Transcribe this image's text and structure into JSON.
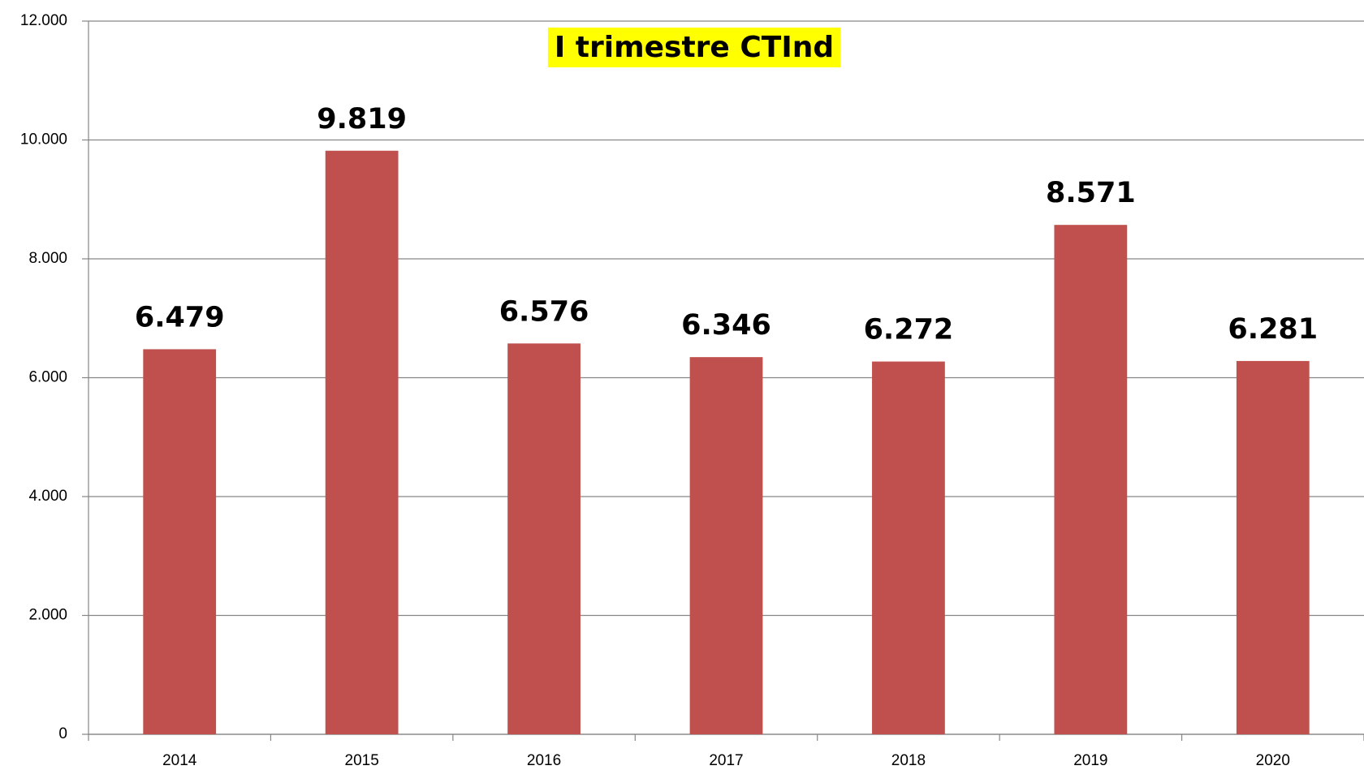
{
  "chart_data": {
    "type": "bar",
    "title": "I trimestre CTInd",
    "categories": [
      "2014",
      "2015",
      "2016",
      "2017",
      "2018",
      "2019",
      "2020"
    ],
    "values": [
      6479,
      9819,
      6576,
      6346,
      6272,
      8571,
      6281
    ],
    "value_labels": [
      "6.479",
      "9.819",
      "6.576",
      "6.346",
      "6.272",
      "8.571",
      "6.281"
    ],
    "color": "#c0504d",
    "ylim": [
      0,
      12000
    ],
    "yticks": [
      0,
      {
        "value": 2000,
        "label": "2.000"
      },
      {
        "value": 4000,
        "label": "4.000"
      },
      {
        "value": 6000,
        "label": "6.000"
      },
      {
        "value": 8000,
        "label": "8.000"
      },
      {
        "value": 10000,
        "label": "10.000"
      },
      {
        "value": 12000,
        "label": "12.000"
      }
    ],
    "grid": true
  }
}
